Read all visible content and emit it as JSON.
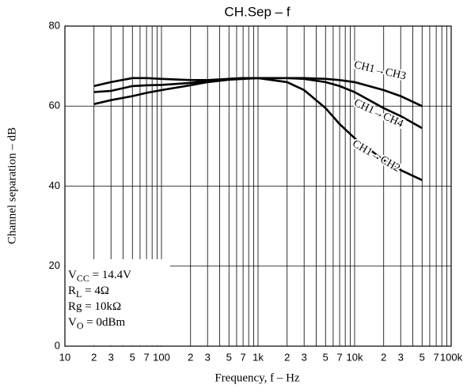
{
  "chart_data": {
    "type": "line",
    "title": "CH.Sep  –  f",
    "x_label": "Frequency, f  –  Hz",
    "y_label": "Channel separation  –  dB",
    "x_scale": "log",
    "xlim": [
      10,
      100000
    ],
    "ylim": [
      0,
      80
    ],
    "xticks": [
      10,
      {
        "value": 20,
        "label": "2"
      },
      {
        "value": 30,
        "label": "3"
      },
      {
        "value": 50,
        "label": "5"
      },
      {
        "value": 70,
        "label": "7"
      },
      100,
      {
        "value": 200,
        "label": "2"
      },
      {
        "value": 300,
        "label": "3"
      },
      {
        "value": 500,
        "label": "5"
      },
      {
        "value": 700,
        "label": "7"
      },
      {
        "value": 1000,
        "label": "1k"
      },
      {
        "value": 2000,
        "label": "2"
      },
      {
        "value": 3000,
        "label": "3"
      },
      {
        "value": 5000,
        "label": "5"
      },
      {
        "value": 7000,
        "label": "7"
      },
      {
        "value": 10000,
        "label": "10k"
      },
      {
        "value": 20000,
        "label": "2"
      },
      {
        "value": 30000,
        "label": "3"
      },
      {
        "value": 50000,
        "label": "5"
      },
      {
        "value": 70000,
        "label": "7"
      },
      {
        "value": 100000,
        "label": "100k"
      }
    ],
    "x_minor_grid": [
      40,
      60,
      80,
      90,
      400,
      600,
      800,
      900,
      4000,
      6000,
      8000,
      9000,
      40000,
      60000,
      80000,
      90000
    ],
    "yticks": [
      0,
      20,
      40,
      60,
      80
    ],
    "grid": true,
    "x": [
      20,
      30,
      50,
      70,
      100,
      200,
      300,
      500,
      700,
      1000,
      2000,
      3000,
      5000,
      7000,
      10000,
      20000,
      30000,
      50000
    ],
    "series": [
      {
        "name": "CH1→CH3",
        "color": "#000000",
        "values": [
          63.5,
          63.8,
          65,
          65.2,
          65.3,
          65.8,
          66.3,
          66.8,
          67,
          67,
          67,
          67,
          66.8,
          66.5,
          66,
          64,
          62.5,
          60
        ]
      },
      {
        "name": "CH1→CH4",
        "color": "#000000",
        "values": [
          60.5,
          61.5,
          62.5,
          63.3,
          64,
          65.2,
          66,
          66.6,
          66.8,
          67,
          67,
          66.8,
          66,
          65,
          63.5,
          59.5,
          57.5,
          54.5
        ]
      },
      {
        "name": "CH1→CH2",
        "color": "#000000",
        "values": [
          65,
          66,
          67,
          67,
          66.8,
          66.5,
          66.5,
          66.8,
          67,
          67,
          66,
          64,
          59.5,
          55.5,
          52,
          46.5,
          44,
          41.5
        ]
      }
    ],
    "annotations": [
      [
        "V",
        "CC",
        " = 14.4V"
      ],
      [
        "R",
        "L",
        " = 4Ω"
      ],
      [
        "Rg = 10kΩ"
      ],
      [
        "V",
        "O",
        " = 0dBm"
      ]
    ]
  }
}
